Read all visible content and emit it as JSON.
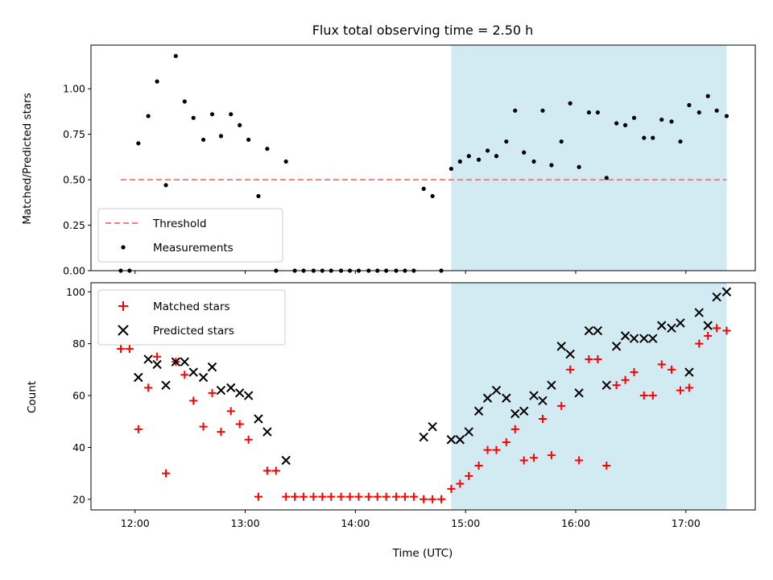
{
  "chart_data": [
    {
      "type": "scatter",
      "title": "Flux total observing time = 2.50 h",
      "xlabel": "",
      "ylabel": "Matched/Predicted stars",
      "ylim": [
        0,
        1.24
      ],
      "yticks": [
        "0.00",
        "0.25",
        "0.50",
        "0.75",
        "1.00"
      ],
      "xticks": [
        "12:00",
        "13:00",
        "14:00",
        "15:00",
        "16:00",
        "17:00"
      ],
      "xlim_hours": [
        11.6,
        17.63
      ],
      "shaded_span_hours": [
        14.87,
        17.37
      ],
      "shade_color": "#add8e6",
      "threshold": {
        "name": "Threshold",
        "y": 0.5,
        "x_range_hours": [
          11.87,
          17.37
        ],
        "color": "#f08080"
      },
      "legend": {
        "position": "lower-left",
        "entries": [
          "Threshold",
          "Measurements"
        ]
      },
      "series": [
        {
          "name": "Measurements",
          "color": "#000000",
          "marker": "dot",
          "points": [
            [
              11.87,
              0
            ],
            [
              11.95,
              0
            ],
            [
              12.03,
              0.7
            ],
            [
              12.12,
              0.85
            ],
            [
              12.2,
              1.04
            ],
            [
              12.28,
              0.47
            ],
            [
              12.37,
              1.18
            ],
            [
              12.45,
              0.93
            ],
            [
              12.53,
              0.84
            ],
            [
              12.62,
              0.72
            ],
            [
              12.7,
              0.86
            ],
            [
              12.78,
              0.74
            ],
            [
              12.87,
              0.86
            ],
            [
              12.95,
              0.8
            ],
            [
              13.03,
              0.72
            ],
            [
              13.12,
              0.41
            ],
            [
              13.2,
              0.67
            ],
            [
              13.28,
              0
            ],
            [
              13.37,
              0.6
            ],
            [
              13.45,
              0
            ],
            [
              13.53,
              0
            ],
            [
              13.62,
              0
            ],
            [
              13.7,
              0
            ],
            [
              13.78,
              0
            ],
            [
              13.87,
              0
            ],
            [
              13.95,
              0
            ],
            [
              14.03,
              0
            ],
            [
              14.12,
              0
            ],
            [
              14.2,
              0
            ],
            [
              14.28,
              0
            ],
            [
              14.37,
              0
            ],
            [
              14.45,
              0
            ],
            [
              14.53,
              0
            ],
            [
              14.62,
              0.45
            ],
            [
              14.7,
              0.41
            ],
            [
              14.78,
              0
            ],
            [
              14.87,
              0.56
            ],
            [
              14.95,
              0.6
            ],
            [
              15.03,
              0.63
            ],
            [
              15.12,
              0.61
            ],
            [
              15.2,
              0.66
            ],
            [
              15.28,
              0.63
            ],
            [
              15.37,
              0.71
            ],
            [
              15.45,
              0.88
            ],
            [
              15.53,
              0.65
            ],
            [
              15.62,
              0.6
            ],
            [
              15.7,
              0.88
            ],
            [
              15.78,
              0.58
            ],
            [
              15.87,
              0.71
            ],
            [
              15.95,
              0.92
            ],
            [
              16.03,
              0.57
            ],
            [
              16.12,
              0.87
            ],
            [
              16.2,
              0.87
            ],
            [
              16.28,
              0.51
            ],
            [
              16.37,
              0.81
            ],
            [
              16.45,
              0.8
            ],
            [
              16.53,
              0.84
            ],
            [
              16.62,
              0.73
            ],
            [
              16.7,
              0.73
            ],
            [
              16.78,
              0.83
            ],
            [
              16.87,
              0.82
            ],
            [
              16.95,
              0.71
            ],
            [
              17.03,
              0.91
            ],
            [
              17.12,
              0.87
            ],
            [
              17.2,
              0.96
            ],
            [
              17.28,
              0.88
            ],
            [
              17.37,
              0.85
            ]
          ]
        }
      ]
    },
    {
      "type": "scatter",
      "title": "",
      "xlabel": "Time (UTC)",
      "ylabel": "Count",
      "ylim": [
        15.9,
        103.5
      ],
      "yticks": [
        "20",
        "40",
        "60",
        "80",
        "100"
      ],
      "xticks": [
        "12:00",
        "13:00",
        "14:00",
        "15:00",
        "16:00",
        "17:00"
      ],
      "xlim_hours": [
        11.6,
        17.63
      ],
      "shaded_span_hours": [
        14.87,
        17.37
      ],
      "shade_color": "#add8e6",
      "legend": {
        "position": "top-left",
        "entries": [
          "Matched stars",
          "Predicted stars"
        ]
      },
      "series": [
        {
          "name": "Matched stars",
          "color": "#ff0000",
          "marker": "plus",
          "points": [
            [
              11.87,
              78
            ],
            [
              11.95,
              78
            ],
            [
              12.03,
              47
            ],
            [
              12.12,
              63
            ],
            [
              12.2,
              75
            ],
            [
              12.28,
              30
            ],
            [
              12.37,
              73
            ],
            [
              12.45,
              68
            ],
            [
              12.53,
              58
            ],
            [
              12.62,
              48
            ],
            [
              12.7,
              61
            ],
            [
              12.78,
              46
            ],
            [
              12.87,
              54
            ],
            [
              12.95,
              49
            ],
            [
              13.03,
              43
            ],
            [
              13.12,
              21
            ],
            [
              13.2,
              31
            ],
            [
              13.28,
              31
            ],
            [
              13.37,
              21
            ],
            [
              13.45,
              21
            ],
            [
              13.53,
              21
            ],
            [
              13.62,
              21
            ],
            [
              13.7,
              21
            ],
            [
              13.78,
              21
            ],
            [
              13.87,
              21
            ],
            [
              13.95,
              21
            ],
            [
              14.03,
              21
            ],
            [
              14.12,
              21
            ],
            [
              14.2,
              21
            ],
            [
              14.28,
              21
            ],
            [
              14.37,
              21
            ],
            [
              14.45,
              21
            ],
            [
              14.53,
              21
            ],
            [
              14.62,
              20
            ],
            [
              14.7,
              20
            ],
            [
              14.78,
              20
            ],
            [
              14.87,
              24
            ],
            [
              14.95,
              26
            ],
            [
              15.03,
              29
            ],
            [
              15.12,
              33
            ],
            [
              15.2,
              39
            ],
            [
              15.28,
              39
            ],
            [
              15.37,
              42
            ],
            [
              15.45,
              47
            ],
            [
              15.53,
              35
            ],
            [
              15.62,
              36
            ],
            [
              15.7,
              51
            ],
            [
              15.78,
              37
            ],
            [
              15.87,
              56
            ],
            [
              15.95,
              70
            ],
            [
              16.03,
              35
            ],
            [
              16.12,
              74
            ],
            [
              16.2,
              74
            ],
            [
              16.28,
              33
            ],
            [
              16.37,
              64
            ],
            [
              16.45,
              66
            ],
            [
              16.53,
              69
            ],
            [
              16.62,
              60
            ],
            [
              16.7,
              60
            ],
            [
              16.78,
              72
            ],
            [
              16.87,
              70
            ],
            [
              16.95,
              62
            ],
            [
              17.03,
              63
            ],
            [
              17.12,
              80
            ],
            [
              17.2,
              83
            ],
            [
              17.28,
              86
            ],
            [
              17.37,
              85
            ]
          ]
        },
        {
          "name": "Predicted stars",
          "color": "#000000",
          "marker": "x",
          "points": [
            [
              12.03,
              67
            ],
            [
              12.12,
              74
            ],
            [
              12.2,
              72
            ],
            [
              12.28,
              64
            ],
            [
              12.37,
              73
            ],
            [
              12.45,
              73
            ],
            [
              12.53,
              69
            ],
            [
              12.62,
              67
            ],
            [
              12.7,
              71
            ],
            [
              12.78,
              62
            ],
            [
              12.87,
              63
            ],
            [
              12.95,
              61
            ],
            [
              13.03,
              60
            ],
            [
              13.12,
              51
            ],
            [
              13.2,
              46
            ],
            [
              13.37,
              35
            ],
            [
              14.62,
              44
            ],
            [
              14.7,
              48
            ],
            [
              14.87,
              43
            ],
            [
              14.95,
              43
            ],
            [
              15.03,
              46
            ],
            [
              15.12,
              54
            ],
            [
              15.2,
              59
            ],
            [
              15.28,
              62
            ],
            [
              15.37,
              59
            ],
            [
              15.45,
              53
            ],
            [
              15.53,
              54
            ],
            [
              15.62,
              60
            ],
            [
              15.7,
              58
            ],
            [
              15.78,
              64
            ],
            [
              15.87,
              79
            ],
            [
              15.95,
              76
            ],
            [
              16.03,
              61
            ],
            [
              16.12,
              85
            ],
            [
              16.2,
              85
            ],
            [
              16.28,
              64
            ],
            [
              16.37,
              79
            ],
            [
              16.45,
              83
            ],
            [
              16.53,
              82
            ],
            [
              16.62,
              82
            ],
            [
              16.7,
              82
            ],
            [
              16.78,
              87
            ],
            [
              16.87,
              86
            ],
            [
              16.95,
              88
            ],
            [
              17.03,
              69
            ],
            [
              17.12,
              92
            ],
            [
              17.2,
              87
            ],
            [
              17.28,
              98
            ],
            [
              17.37,
              100
            ]
          ]
        }
      ]
    }
  ]
}
